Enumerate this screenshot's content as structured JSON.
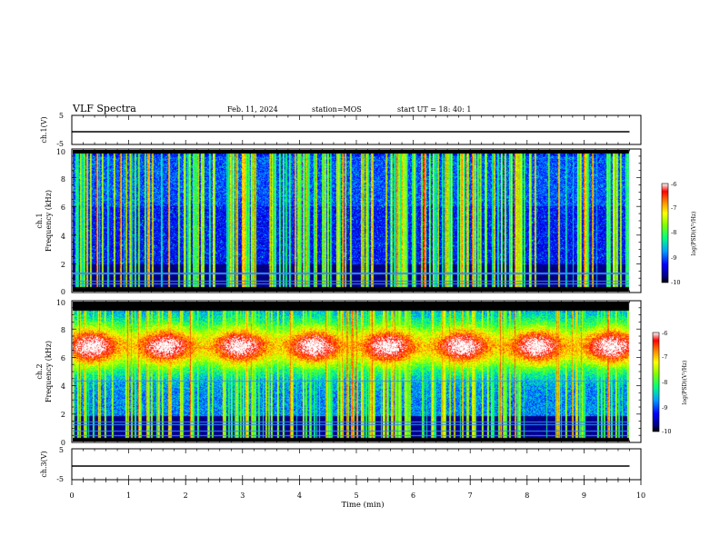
{
  "header": {
    "title": "VLF Spectra",
    "date": "Feb. 11, 2024",
    "station": "station=MOS",
    "start": "start  UT =   18: 40: 1"
  },
  "chart_data": [
    {
      "type": "line",
      "panel": "ch1-waveform",
      "ylabel": "ch.1(V)",
      "ylim": [
        -5,
        5
      ],
      "yticks": [
        "5",
        "-5"
      ],
      "xlim": [
        0,
        10
      ],
      "baseline": 0,
      "x_end": 9.8
    },
    {
      "type": "heatmap",
      "panel": "ch1-spectrogram",
      "ylabel_line1": "ch.1",
      "ylabel_line2": "Frequency (kHz)",
      "ylim": [
        0,
        10
      ],
      "yticks": [
        "0",
        "2",
        "4",
        "6",
        "8",
        "10"
      ],
      "xlim": [
        0,
        10
      ],
      "data_end_min": 9.8,
      "colorbar": {
        "label": "log(PSD)(V²/Hz)",
        "ticks": [
          "-6",
          "-7",
          "-8",
          "-9",
          "-10"
        ],
        "range": [
          -10,
          -6
        ]
      },
      "horizontal_lines_khz": [
        0.5,
        0.7,
        1.2,
        1.3
      ],
      "background_level": -9.6,
      "band_khz": [
        0.3,
        9.8
      ]
    },
    {
      "type": "heatmap",
      "panel": "ch2-spectrogram",
      "ylabel_line1": "ch.2",
      "ylabel_line2": "Frequency (kHz)",
      "ylim": [
        0,
        10
      ],
      "yticks": [
        "0",
        "2",
        "4",
        "6",
        "8",
        "10"
      ],
      "xlim": [
        0,
        10
      ],
      "data_end_min": 9.8,
      "colorbar": {
        "label": "log(PSD)(V²/Hz)",
        "ticks": [
          "-6",
          "-7",
          "-8",
          "-9",
          "-10"
        ],
        "range": [
          -10,
          -6
        ]
      },
      "horizontal_lines_khz": [
        0.4,
        0.7,
        1.2,
        1.4,
        4.3
      ],
      "band_center_khz": 6.8,
      "band_peak_level": -6.8
    },
    {
      "type": "line",
      "panel": "ch3-waveform",
      "ylabel": "ch.3(V)",
      "ylim": [
        -5,
        5
      ],
      "yticks": [
        "5",
        "-5"
      ],
      "xlim": [
        0,
        10
      ],
      "xlabel": "Time (min)",
      "xticks": [
        "0",
        "1",
        "2",
        "3",
        "4",
        "5",
        "6",
        "7",
        "8",
        "9",
        "10"
      ],
      "baseline": 0,
      "x_end": 9.8
    }
  ]
}
